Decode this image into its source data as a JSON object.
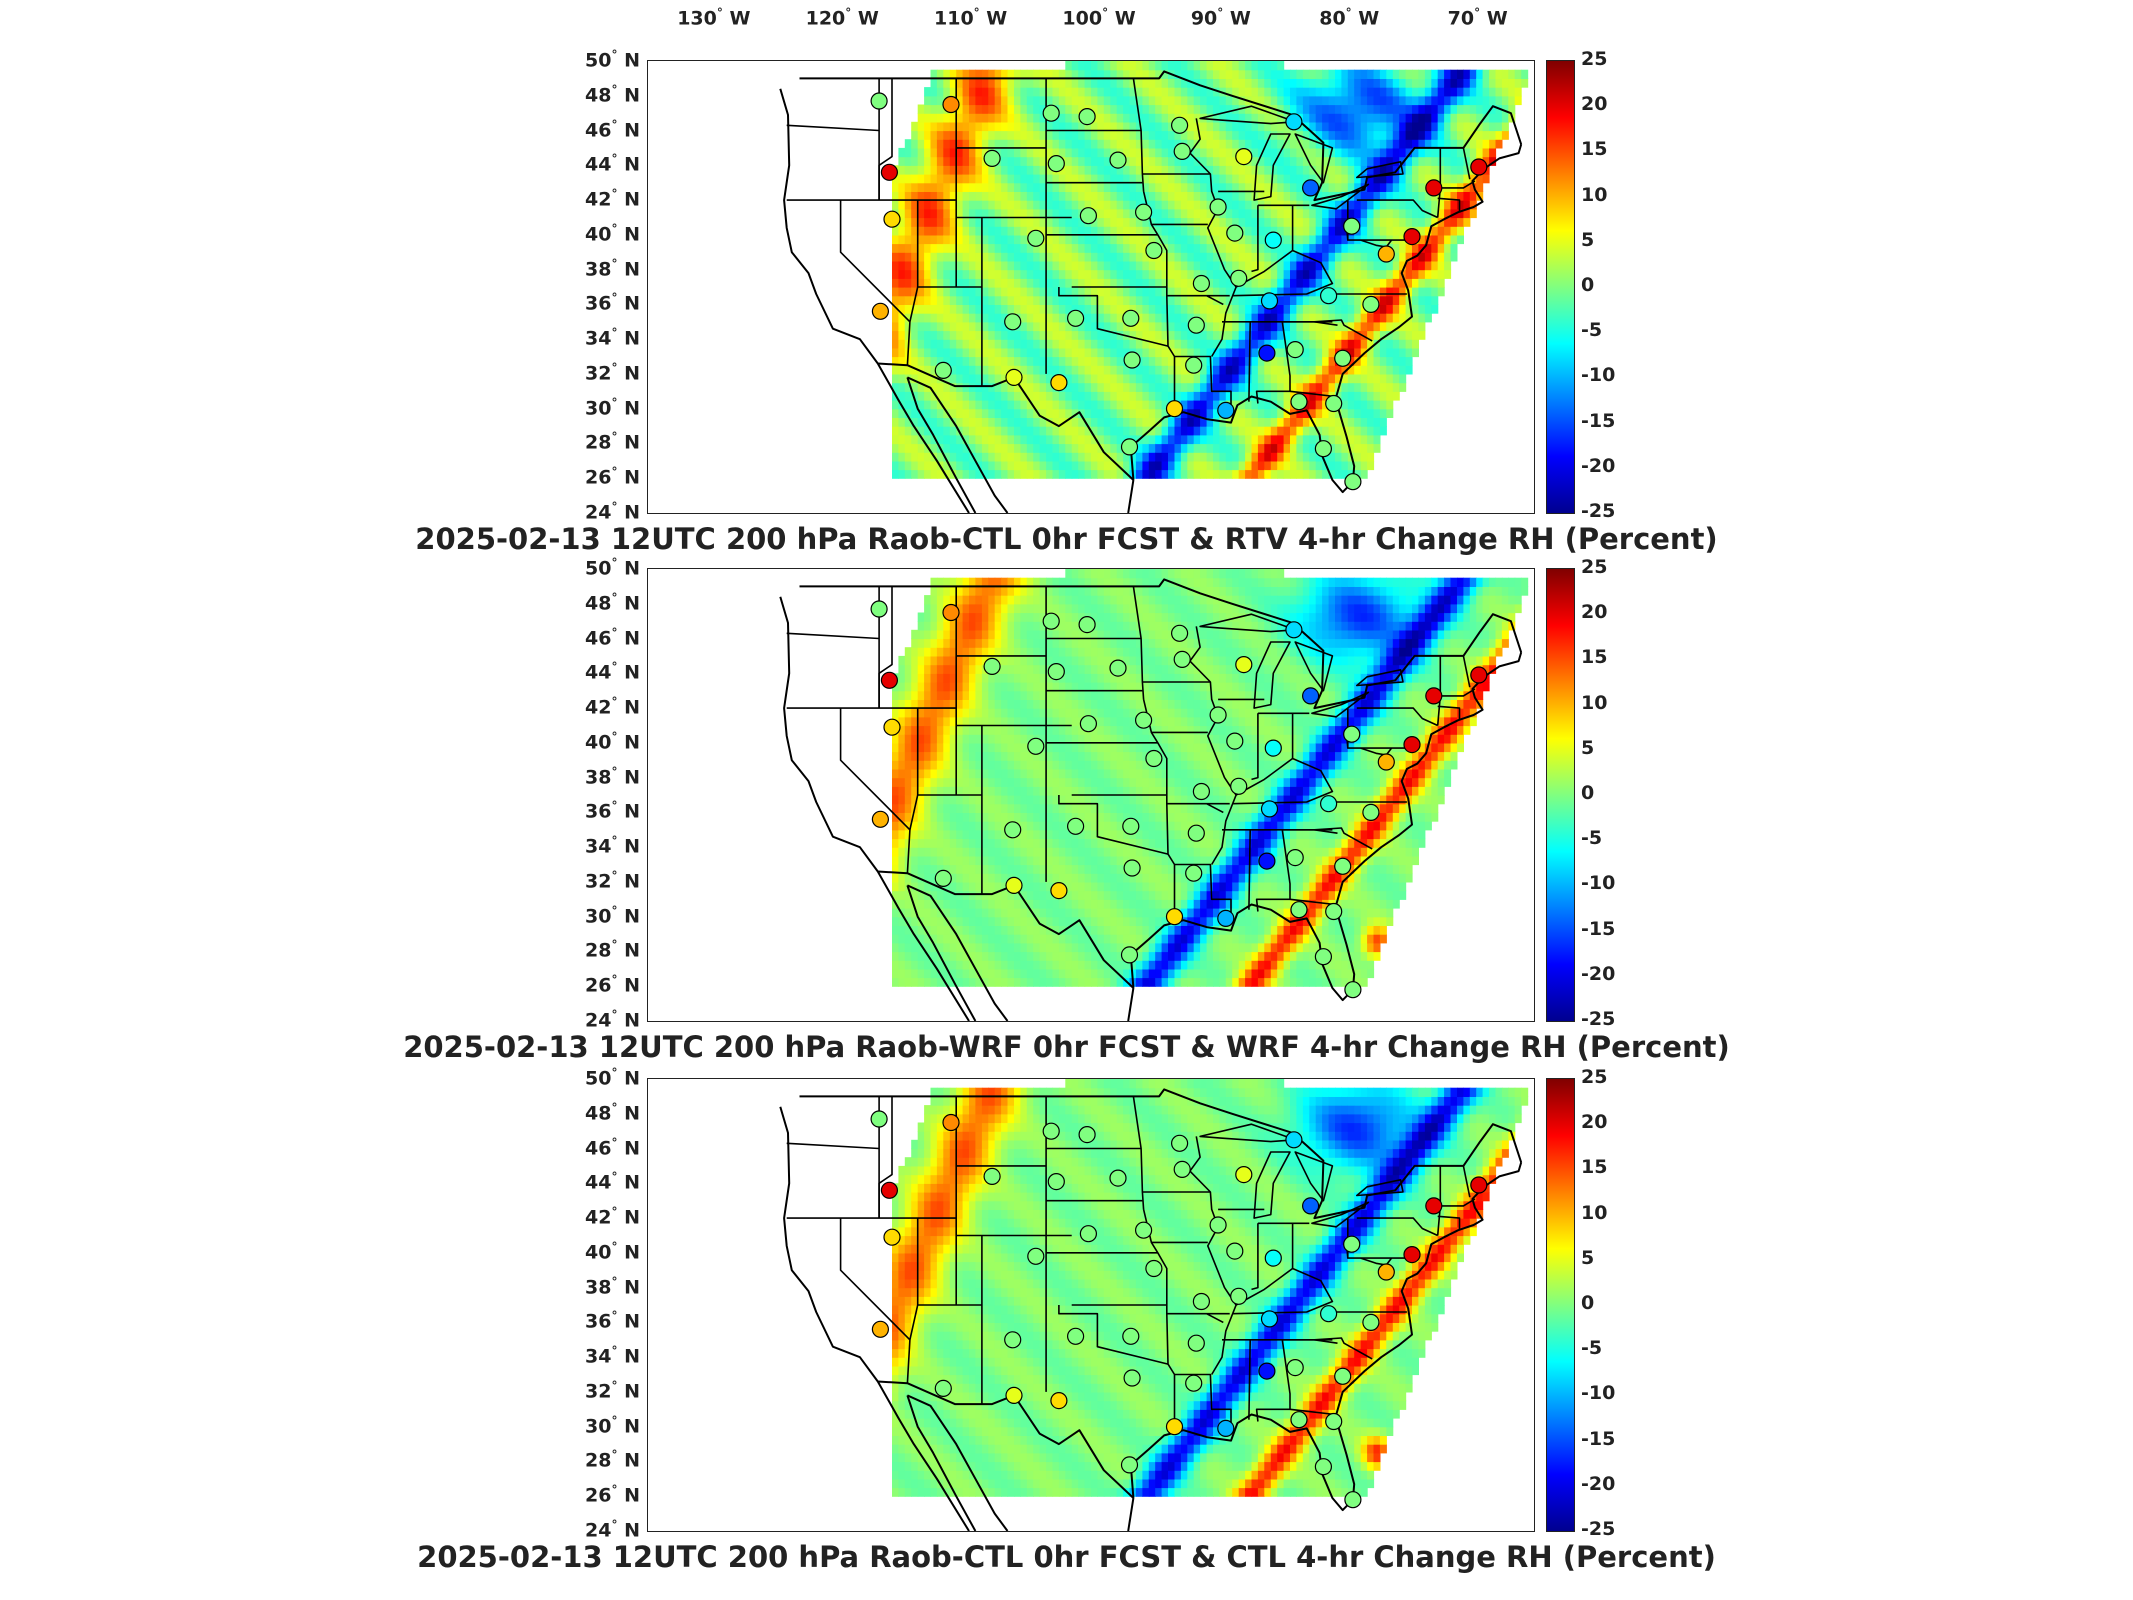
{
  "longitude_labels": [
    "130",
    "120",
    "110",
    "100",
    "90",
    "80",
    "70"
  ],
  "longitude_suffix": "W",
  "latitude_labels": [
    "50",
    "48",
    "46",
    "44",
    "42",
    "40",
    "38",
    "36",
    "34",
    "32",
    "30",
    "28",
    "26",
    "24"
  ],
  "latitude_suffix": "N",
  "degree_symbol": "°",
  "colorbar": {
    "ticks": [
      "25",
      "20",
      "15",
      "10",
      "5",
      "0",
      "-5",
      "-10",
      "-15",
      "-20",
      "-25"
    ],
    "range": [
      -25,
      25
    ],
    "colormap": [
      "#00008f",
      "#0000ff",
      "#0080ff",
      "#00ffff",
      "#80ff80",
      "#ffff00",
      "#ff8000",
      "#ff0000",
      "#800000"
    ]
  },
  "panels": [
    {
      "title": "2025-02-13 12UTC 200 hPa Raob-CTL 0hr FCST & RTV 4-hr Change RH (Percent)"
    },
    {
      "title": "2025-02-13 12UTC 200 hPa Raob-WRF 0hr FCST & WRF 4-hr Change RH (Percent)"
    },
    {
      "title": "2025-02-13 12UTC 200 hPa Raob-CTL 0hr FCST & CTL 4-hr Change RH (Percent)"
    }
  ],
  "raob_stations": [
    {
      "lon": -117.0,
      "lat": 47.7,
      "value": 0
    },
    {
      "lon": -111.4,
      "lat": 47.5,
      "value": 12
    },
    {
      "lon": -103.6,
      "lat": 47.0,
      "value": 0
    },
    {
      "lon": -100.8,
      "lat": 46.8,
      "value": 0
    },
    {
      "lon": -93.6,
      "lat": 46.3,
      "value": 0
    },
    {
      "lon": -84.7,
      "lat": 46.5,
      "value": -8
    },
    {
      "lon": -108.2,
      "lat": 44.4,
      "value": 0
    },
    {
      "lon": -103.2,
      "lat": 44.1,
      "value": 0
    },
    {
      "lon": -98.4,
      "lat": 44.3,
      "value": 0
    },
    {
      "lon": -93.4,
      "lat": 44.8,
      "value": 0
    },
    {
      "lon": -88.6,
      "lat": 44.5,
      "value": 5
    },
    {
      "lon": -116.2,
      "lat": 43.6,
      "value": 20
    },
    {
      "lon": -83.4,
      "lat": 42.7,
      "value": -14
    },
    {
      "lon": -73.8,
      "lat": 42.7,
      "value": 20
    },
    {
      "lon": -70.3,
      "lat": 43.9,
      "value": 20
    },
    {
      "lon": -96.4,
      "lat": 41.3,
      "value": 0
    },
    {
      "lon": -90.6,
      "lat": 41.6,
      "value": 0
    },
    {
      "lon": -89.3,
      "lat": 40.1,
      "value": 0
    },
    {
      "lon": -116.0,
      "lat": 40.9,
      "value": 8
    },
    {
      "lon": -104.8,
      "lat": 39.8,
      "value": 0
    },
    {
      "lon": -100.7,
      "lat": 41.1,
      "value": 0
    },
    {
      "lon": -95.6,
      "lat": 39.1,
      "value": 0
    },
    {
      "lon": -86.3,
      "lat": 39.7,
      "value": -6
    },
    {
      "lon": -80.2,
      "lat": 40.5,
      "value": 0
    },
    {
      "lon": -77.5,
      "lat": 38.9,
      "value": 10
    },
    {
      "lon": -75.5,
      "lat": 39.9,
      "value": 20
    },
    {
      "lon": -91.9,
      "lat": 37.2,
      "value": 0
    },
    {
      "lon": -86.6,
      "lat": 36.2,
      "value": -8
    },
    {
      "lon": -82.0,
      "lat": 36.5,
      "value": -4
    },
    {
      "lon": -78.7,
      "lat": 36.0,
      "value": 0
    },
    {
      "lon": -116.9,
      "lat": 35.6,
      "value": 10
    },
    {
      "lon": -106.6,
      "lat": 35.0,
      "value": 0
    },
    {
      "lon": -101.7,
      "lat": 35.2,
      "value": 0
    },
    {
      "lon": -97.4,
      "lat": 35.2,
      "value": 0
    },
    {
      "lon": -92.3,
      "lat": 34.8,
      "value": 0
    },
    {
      "lon": -86.8,
      "lat": 33.2,
      "value": -18
    },
    {
      "lon": -84.6,
      "lat": 33.4,
      "value": 0
    },
    {
      "lon": -80.9,
      "lat": 32.9,
      "value": 0
    },
    {
      "lon": -112.0,
      "lat": 32.2,
      "value": 0
    },
    {
      "lon": -106.5,
      "lat": 31.8,
      "value": 5
    },
    {
      "lon": -97.3,
      "lat": 32.8,
      "value": 0
    },
    {
      "lon": -92.5,
      "lat": 32.5,
      "value": 0
    },
    {
      "lon": -94.0,
      "lat": 30.0,
      "value": 8
    },
    {
      "lon": -90.0,
      "lat": 29.9,
      "value": -10
    },
    {
      "lon": -84.3,
      "lat": 30.4,
      "value": 0
    },
    {
      "lon": -81.6,
      "lat": 30.3,
      "value": 0
    },
    {
      "lon": -97.5,
      "lat": 27.8,
      "value": 0
    },
    {
      "lon": -82.4,
      "lat": 27.7,
      "value": 0
    },
    {
      "lon": -80.1,
      "lat": 25.8,
      "value": 0
    },
    {
      "lon": -103.0,
      "lat": 31.5,
      "value": 8
    },
    {
      "lon": -89.0,
      "lat": 37.5,
      "value": 0
    }
  ]
}
